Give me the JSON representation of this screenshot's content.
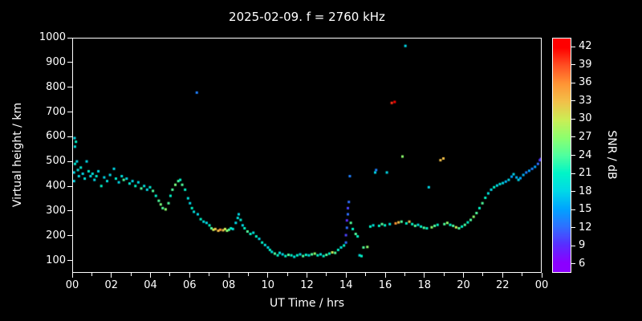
{
  "title": "2025-02-09. f = 2760 kHz",
  "axes": {
    "x": {
      "label": "UT Time / hrs",
      "ticks": [
        {
          "v": 0,
          "t": "00"
        },
        {
          "v": 2,
          "t": "02"
        },
        {
          "v": 4,
          "t": "04"
        },
        {
          "v": 6,
          "t": "06"
        },
        {
          "v": 8,
          "t": "08"
        },
        {
          "v": 10,
          "t": "10"
        },
        {
          "v": 12,
          "t": "12"
        },
        {
          "v": 14,
          "t": "14"
        },
        {
          "v": 16,
          "t": "16"
        },
        {
          "v": 18,
          "t": "18"
        },
        {
          "v": 20,
          "t": "20"
        },
        {
          "v": 22,
          "t": "22"
        },
        {
          "v": 24,
          "t": "00"
        }
      ]
    },
    "y": {
      "label": "Virtual height / km",
      "ticks": [
        100,
        200,
        300,
        400,
        500,
        600,
        700,
        800,
        900,
        1000
      ]
    },
    "colorbar": {
      "label": "SNR / dB",
      "ticks": [
        6,
        9,
        12,
        15,
        18,
        21,
        24,
        27,
        30,
        33,
        36,
        39,
        42
      ]
    }
  },
  "chart_data": {
    "type": "scatter",
    "title": "2025-02-09. f = 2760 kHz",
    "xlabel": "UT Time / hrs",
    "ylabel": "Virtual height / km",
    "xlim": [
      0,
      24
    ],
    "ylim": [
      50,
      1000
    ],
    "grid": false,
    "background": "#000000",
    "colorbar": {
      "label": "SNR / dB",
      "range": [
        4.5,
        43.5
      ],
      "ticks": [
        6,
        9,
        12,
        15,
        18,
        21,
        24,
        27,
        30,
        33,
        36,
        39,
        42
      ]
    },
    "colormap": [
      [
        6,
        "#8b00ff"
      ],
      [
        9,
        "#5a2eff"
      ],
      [
        12,
        "#2f6fff"
      ],
      [
        15,
        "#00a4ff"
      ],
      [
        18,
        "#00d9e8"
      ],
      [
        21,
        "#00f5c8"
      ],
      [
        24,
        "#50ff9e"
      ],
      [
        27,
        "#8eff6e"
      ],
      [
        30,
        "#ccee55"
      ],
      [
        33,
        "#f2c04a"
      ],
      [
        36,
        "#ff9435"
      ],
      [
        39,
        "#ff5024"
      ],
      [
        42,
        "#ff0000"
      ]
    ],
    "points": [
      [
        0.05,
        420,
        18
      ],
      [
        0.05,
        455,
        18
      ],
      [
        0.08,
        595,
        18
      ],
      [
        0.1,
        490,
        20
      ],
      [
        0.1,
        560,
        19
      ],
      [
        0.15,
        580,
        21
      ],
      [
        0.2,
        500,
        18
      ],
      [
        0.25,
        465,
        19
      ],
      [
        0.3,
        440,
        18
      ],
      [
        0.4,
        475,
        20
      ],
      [
        0.5,
        450,
        18
      ],
      [
        0.6,
        430,
        19
      ],
      [
        0.7,
        500,
        18
      ],
      [
        0.8,
        460,
        20
      ],
      [
        0.9,
        440,
        18
      ],
      [
        1.0,
        450,
        19
      ],
      [
        1.1,
        425,
        18
      ],
      [
        1.2,
        440,
        20
      ],
      [
        1.3,
        460,
        18
      ],
      [
        1.45,
        400,
        21
      ],
      [
        1.6,
        435,
        18
      ],
      [
        1.75,
        420,
        19
      ],
      [
        1.9,
        445,
        18
      ],
      [
        2.1,
        470,
        18
      ],
      [
        2.2,
        430,
        20
      ],
      [
        2.35,
        415,
        18
      ],
      [
        2.5,
        440,
        19
      ],
      [
        2.6,
        425,
        24
      ],
      [
        2.75,
        430,
        18
      ],
      [
        2.9,
        410,
        20
      ],
      [
        3.05,
        420,
        18
      ],
      [
        3.2,
        400,
        21
      ],
      [
        3.35,
        415,
        18
      ],
      [
        3.5,
        390,
        24
      ],
      [
        3.65,
        400,
        19
      ],
      [
        3.8,
        385,
        18
      ],
      [
        3.95,
        395,
        20
      ],
      [
        4.1,
        380,
        24
      ],
      [
        4.25,
        360,
        21
      ],
      [
        4.4,
        340,
        24
      ],
      [
        4.5,
        325,
        26
      ],
      [
        4.6,
        310,
        24
      ],
      [
        4.75,
        305,
        27
      ],
      [
        4.9,
        330,
        24
      ],
      [
        5.0,
        360,
        21
      ],
      [
        5.1,
        385,
        24
      ],
      [
        5.25,
        405,
        26
      ],
      [
        5.4,
        420,
        24
      ],
      [
        5.5,
        425,
        21
      ],
      [
        5.6,
        405,
        24
      ],
      [
        5.75,
        385,
        21
      ],
      [
        5.9,
        350,
        19
      ],
      [
        6.0,
        330,
        18
      ],
      [
        6.1,
        310,
        21
      ],
      [
        6.2,
        295,
        19
      ],
      [
        6.35,
        780,
        13
      ],
      [
        6.4,
        285,
        18
      ],
      [
        6.55,
        265,
        21
      ],
      [
        6.7,
        255,
        19
      ],
      [
        6.85,
        250,
        18
      ],
      [
        7.0,
        240,
        21
      ],
      [
        7.1,
        228,
        24
      ],
      [
        7.2,
        222,
        30
      ],
      [
        7.3,
        225,
        33
      ],
      [
        7.45,
        218,
        33
      ],
      [
        7.55,
        222,
        36
      ],
      [
        7.7,
        220,
        33
      ],
      [
        7.8,
        225,
        30
      ],
      [
        7.9,
        218,
        27
      ],
      [
        8.0,
        222,
        24
      ],
      [
        8.1,
        228,
        21
      ],
      [
        8.2,
        225,
        19
      ],
      [
        8.35,
        250,
        18
      ],
      [
        8.45,
        270,
        19
      ],
      [
        8.5,
        285,
        18
      ],
      [
        8.6,
        262,
        20
      ],
      [
        8.7,
        240,
        18
      ],
      [
        8.8,
        228,
        21
      ],
      [
        8.95,
        215,
        24
      ],
      [
        9.1,
        205,
        21
      ],
      [
        9.25,
        210,
        19
      ],
      [
        9.4,
        195,
        21
      ],
      [
        9.55,
        185,
        18
      ],
      [
        9.7,
        170,
        21
      ],
      [
        9.85,
        160,
        19
      ],
      [
        10.0,
        150,
        18
      ],
      [
        10.1,
        140,
        21
      ],
      [
        10.2,
        132,
        19
      ],
      [
        10.35,
        125,
        24
      ],
      [
        10.5,
        118,
        21
      ],
      [
        10.6,
        128,
        19
      ],
      [
        10.75,
        122,
        18
      ],
      [
        10.9,
        115,
        21
      ],
      [
        11.05,
        120,
        24
      ],
      [
        11.2,
        118,
        21
      ],
      [
        11.35,
        112,
        19
      ],
      [
        11.5,
        118,
        21
      ],
      [
        11.65,
        122,
        18
      ],
      [
        11.8,
        115,
        24
      ],
      [
        11.95,
        120,
        21
      ],
      [
        12.1,
        118,
        19
      ],
      [
        12.25,
        122,
        24
      ],
      [
        12.4,
        125,
        27
      ],
      [
        12.55,
        118,
        21
      ],
      [
        12.7,
        122,
        19
      ],
      [
        12.85,
        115,
        21
      ],
      [
        13.0,
        120,
        24
      ],
      [
        13.15,
        125,
        21
      ],
      [
        13.3,
        130,
        30
      ],
      [
        13.45,
        128,
        24
      ],
      [
        13.6,
        140,
        21
      ],
      [
        13.75,
        150,
        19
      ],
      [
        13.9,
        158,
        21
      ],
      [
        14.0,
        170,
        12
      ],
      [
        14.0,
        200,
        10
      ],
      [
        14.05,
        230,
        12
      ],
      [
        14.05,
        260,
        9
      ],
      [
        14.1,
        285,
        12
      ],
      [
        14.1,
        310,
        10
      ],
      [
        14.15,
        335,
        12
      ],
      [
        14.2,
        440,
        13
      ],
      [
        14.25,
        250,
        24
      ],
      [
        14.35,
        225,
        21
      ],
      [
        14.5,
        205,
        24
      ],
      [
        14.6,
        195,
        21
      ],
      [
        14.7,
        118,
        19
      ],
      [
        14.8,
        115,
        21
      ],
      [
        14.9,
        150,
        24
      ],
      [
        15.1,
        152,
        27
      ],
      [
        15.25,
        235,
        21
      ],
      [
        15.4,
        240,
        19
      ],
      [
        15.5,
        455,
        18
      ],
      [
        15.55,
        465,
        13
      ],
      [
        15.7,
        238,
        21
      ],
      [
        15.85,
        245,
        24
      ],
      [
        16.0,
        240,
        21
      ],
      [
        16.1,
        455,
        18
      ],
      [
        16.25,
        245,
        19
      ],
      [
        16.35,
        738,
        40
      ],
      [
        16.5,
        742,
        42
      ],
      [
        16.55,
        248,
        36
      ],
      [
        16.7,
        252,
        33
      ],
      [
        16.85,
        255,
        24
      ],
      [
        16.9,
        520,
        27
      ],
      [
        17.05,
        970,
        18
      ],
      [
        17.1,
        248,
        21
      ],
      [
        17.25,
        255,
        33
      ],
      [
        17.4,
        245,
        21
      ],
      [
        17.55,
        238,
        24
      ],
      [
        17.7,
        242,
        19
      ],
      [
        17.85,
        235,
        21
      ],
      [
        18.0,
        230,
        24
      ],
      [
        18.15,
        228,
        21
      ],
      [
        18.25,
        395,
        18
      ],
      [
        18.4,
        232,
        27
      ],
      [
        18.55,
        238,
        24
      ],
      [
        18.7,
        242,
        21
      ],
      [
        18.85,
        505,
        33
      ],
      [
        19.0,
        512,
        33
      ],
      [
        19.05,
        245,
        24
      ],
      [
        19.2,
        250,
        27
      ],
      [
        19.35,
        242,
        21
      ],
      [
        19.5,
        238,
        24
      ],
      [
        19.65,
        232,
        30
      ],
      [
        19.8,
        228,
        24
      ],
      [
        19.95,
        235,
        21
      ],
      [
        20.1,
        242,
        24
      ],
      [
        20.25,
        252,
        21
      ],
      [
        20.4,
        262,
        24
      ],
      [
        20.55,
        275,
        27
      ],
      [
        20.7,
        290,
        24
      ],
      [
        20.85,
        310,
        21
      ],
      [
        21.0,
        330,
        24
      ],
      [
        21.15,
        352,
        21
      ],
      [
        21.3,
        370,
        19
      ],
      [
        21.45,
        385,
        18
      ],
      [
        21.6,
        395,
        21
      ],
      [
        21.75,
        402,
        18
      ],
      [
        21.9,
        408,
        19
      ],
      [
        22.05,
        412,
        18
      ],
      [
        22.2,
        418,
        16
      ],
      [
        22.35,
        425,
        18
      ],
      [
        22.5,
        438,
        15
      ],
      [
        22.6,
        448,
        18
      ],
      [
        22.75,
        435,
        16
      ],
      [
        22.85,
        425,
        18
      ],
      [
        22.95,
        432,
        15
      ],
      [
        23.1,
        445,
        16
      ],
      [
        23.25,
        455,
        13
      ],
      [
        23.4,
        462,
        15
      ],
      [
        23.55,
        470,
        13
      ],
      [
        23.7,
        478,
        15
      ],
      [
        23.85,
        490,
        12
      ],
      [
        23.95,
        505,
        10
      ],
      [
        24.0,
        510,
        9
      ]
    ]
  }
}
